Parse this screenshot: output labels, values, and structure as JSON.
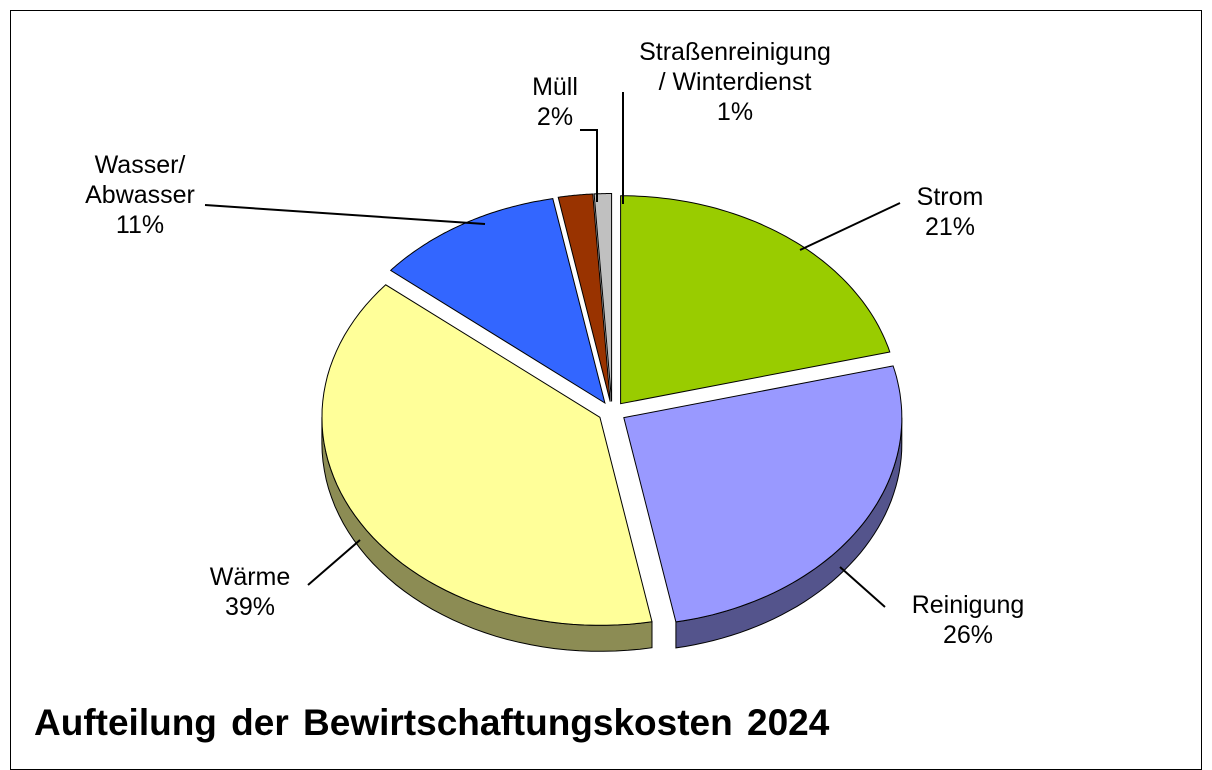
{
  "chart_data": {
    "type": "pie",
    "title": "Aufteilung der Bewirtschaftungskosten 2024",
    "categories": [
      "Strom",
      "Reinigung",
      "Wärme",
      "Wasser/\nAbwasser",
      "Müll",
      "Straßenreinigung\n/ Winterdienst"
    ],
    "values": [
      21,
      26,
      39,
      11,
      2,
      1
    ],
    "value_labels": [
      "21%",
      "26%",
      "39%",
      "11%",
      "2%",
      "1%"
    ],
    "colors": [
      "#99cc00",
      "#9999ff",
      "#ffff99",
      "#3366ff",
      "#993300",
      "#c0c0c0"
    ]
  }
}
